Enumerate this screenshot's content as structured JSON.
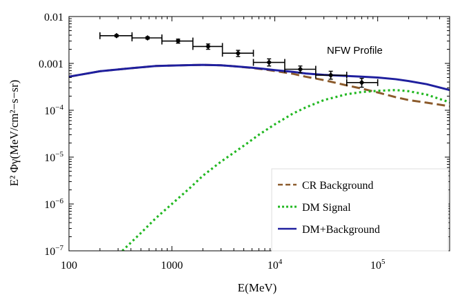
{
  "chart_data": {
    "type": "line",
    "xlabel": "E(MeV)",
    "ylabel": "E² Φγ(MeV/cm²−s−sr)",
    "xscale": "log",
    "yscale": "log",
    "xlim": [
      100,
      500000
    ],
    "ylim": [
      1e-07,
      0.01
    ],
    "annotation": "NFW Profile",
    "x_ticks": [
      {
        "value": 100,
        "label": "100"
      },
      {
        "value": 1000,
        "label": "1000"
      },
      {
        "value": 10000,
        "label": "10",
        "exp": "4"
      },
      {
        "value": 100000,
        "label": "10",
        "exp": "5"
      }
    ],
    "y_ticks": [
      {
        "value": 0.01,
        "label": "0.01"
      },
      {
        "value": 0.001,
        "label": "0.001"
      },
      {
        "value": 0.0001,
        "label": "10",
        "exp": "−4"
      },
      {
        "value": 1e-05,
        "label": "10",
        "exp": "−5"
      },
      {
        "value": 1e-06,
        "label": "10",
        "exp": "−6"
      },
      {
        "value": 1e-07,
        "label": "10",
        "exp": "−7"
      }
    ],
    "legend_position": "bottom-right",
    "series": [
      {
        "name": "CR Background",
        "color": "#8B5A2B",
        "style": "dashed",
        "x": [
          100,
          200,
          400,
          700,
          1000,
          1500,
          2000,
          3000,
          4000,
          6000,
          8000,
          10000,
          15000,
          20000,
          30000,
          50000,
          70000,
          100000,
          150000,
          200000,
          300000,
          500000
        ],
        "y": [
          0.00052,
          0.00068,
          0.00079,
          0.00088,
          0.0009,
          0.00092,
          0.00093,
          0.00091,
          0.00087,
          0.0008,
          0.00074,
          0.00069,
          0.0006,
          0.00052,
          0.00044,
          0.00034,
          0.00029,
          0.00024,
          0.00019,
          0.000165,
          0.000145,
          0.000122
        ]
      },
      {
        "name": "DM Signal",
        "color": "#22B822",
        "style": "dotted",
        "x": [
          330,
          500,
          700,
          1000,
          1500,
          2000,
          3000,
          5000,
          7000,
          10000,
          15000,
          20000,
          30000,
          50000,
          70000,
          100000,
          150000,
          200000,
          300000,
          500000
        ],
        "y": [
          1e-07,
          2.4e-07,
          5e-07,
          1e-06,
          2.2e-06,
          4e-06,
          8e-06,
          1.75e-05,
          3e-05,
          5e-05,
          8.5e-05,
          0.000115,
          0.000165,
          0.00022,
          0.000245,
          0.00026,
          0.00027,
          0.000255,
          0.000215,
          0.000148
        ]
      },
      {
        "name": "DM+Background",
        "color": "#1f1f9e",
        "style": "solid",
        "x": [
          100,
          200,
          400,
          700,
          1000,
          1500,
          2000,
          3000,
          4000,
          6000,
          8000,
          10000,
          15000,
          20000,
          30000,
          50000,
          70000,
          100000,
          150000,
          200000,
          300000,
          500000
        ],
        "y": [
          0.00052,
          0.00068,
          0.00079,
          0.00088,
          0.0009,
          0.00092,
          0.00093,
          0.00091,
          0.00087,
          0.00081,
          0.00076,
          0.00072,
          0.00066,
          0.00061,
          0.00057,
          0.00054,
          0.00052,
          0.0005,
          0.00046,
          0.00042,
          0.00036,
          0.00027
        ]
      }
    ],
    "data_points": {
      "color": "#000000",
      "points": [
        {
          "x": 290,
          "y": 0.0039,
          "xlo": 200,
          "xhi": 410,
          "ylo": 0.0037,
          "yhi": 0.0041
        },
        {
          "x": 580,
          "y": 0.0035,
          "xlo": 410,
          "xhi": 800,
          "ylo": 0.0033,
          "yhi": 0.0037
        },
        {
          "x": 1150,
          "y": 0.003,
          "xlo": 800,
          "xhi": 1600,
          "ylo": 0.0027,
          "yhi": 0.0033
        },
        {
          "x": 2250,
          "y": 0.0023,
          "xlo": 1600,
          "xhi": 3100,
          "ylo": 0.002,
          "yhi": 0.0026
        },
        {
          "x": 4400,
          "y": 0.00165,
          "xlo": 3100,
          "xhi": 6200,
          "ylo": 0.0014,
          "yhi": 0.0019
        },
        {
          "x": 8800,
          "y": 0.00105,
          "xlo": 6200,
          "xhi": 12500,
          "ylo": 0.00088,
          "yhi": 0.00125
        },
        {
          "x": 17700,
          "y": 0.00075,
          "xlo": 12500,
          "xhi": 25000,
          "ylo": 0.00063,
          "yhi": 0.00088
        },
        {
          "x": 35000,
          "y": 0.00056,
          "xlo": 25000,
          "xhi": 50000,
          "ylo": 0.00046,
          "yhi": 0.00068
        },
        {
          "x": 70000,
          "y": 0.00039,
          "xlo": 50000,
          "xhi": 100000,
          "ylo": 0.00031,
          "yhi": 0.00048
        }
      ]
    }
  }
}
